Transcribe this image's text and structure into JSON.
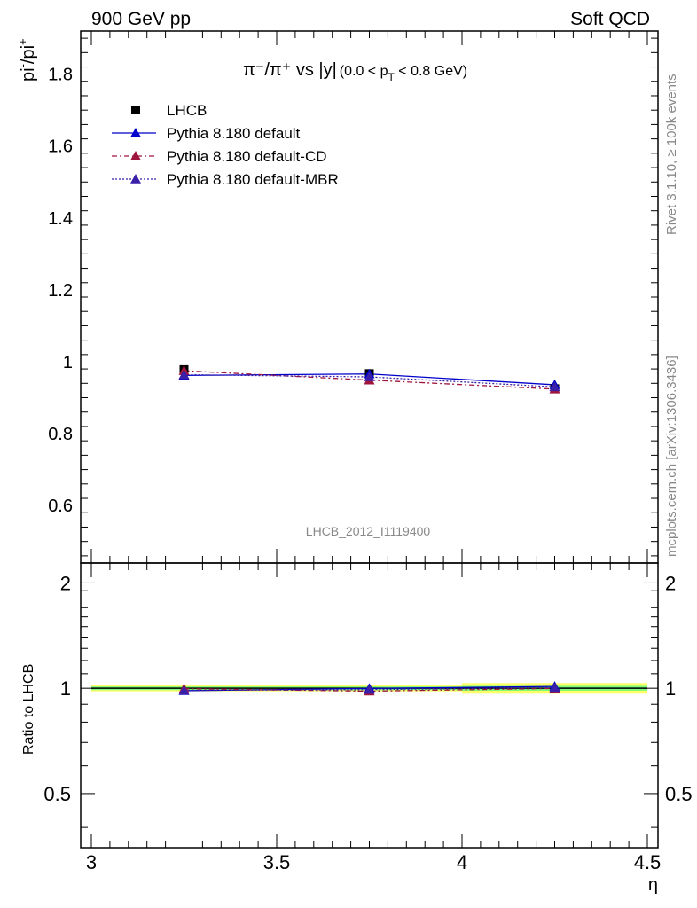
{
  "header": {
    "left": "900 GeV pp",
    "right": "Soft QCD"
  },
  "side_text": {
    "rivet": "Rivet 3.1.10, ≥ 100k events",
    "url": "mcplots.cern.ch [arXiv:1306.3436]"
  },
  "analysis_label": "LHCB_2012_I1119400",
  "colors": {
    "data": "#000000",
    "default": "#0000cc",
    "cd": "#a0153e",
    "mbr": "#3a1fa8",
    "band_inner": "#7cfc7c",
    "band_outer": "#ffff66"
  },
  "chart_data": [
    {
      "type": "line",
      "title_parts": {
        "main": "π⁻/π⁺ vs |y|",
        "sub": "(0.0 < p",
        "sub_sub": "T",
        "sub_end": " < 0.8 GeV)"
      },
      "ylabel": "pi⁻/pi⁺",
      "xlim": [
        3.0,
        4.5
      ],
      "ylim": [
        0.44,
        1.92
      ],
      "y_ticks": [
        0.6,
        0.8,
        1,
        1.2,
        1.4,
        1.6,
        1.8
      ],
      "y_tick_labels": [
        "0.6",
        "0.8",
        "1",
        "1.2",
        "1.4",
        "1.6",
        "1.8"
      ],
      "x": [
        3.25,
        3.75,
        4.25
      ],
      "x_bin_edges": [
        3.0,
        3.5,
        4.0,
        4.5
      ],
      "series": [
        {
          "name": "LHCB",
          "key": "data",
          "values": [
            0.978,
            0.967,
            0.925
          ],
          "style": "square-marker"
        },
        {
          "name": "Pythia 8.180 default",
          "key": "default",
          "values": [
            0.962,
            0.966,
            0.936
          ],
          "style": "solid"
        },
        {
          "name": "Pythia 8.180 default-CD",
          "key": "cd",
          "values": [
            0.975,
            0.949,
            0.924
          ],
          "style": "dashdot"
        },
        {
          "name": "Pythia 8.180 default-MBR",
          "key": "mbr",
          "values": [
            0.964,
            0.958,
            0.93
          ],
          "style": "dotted"
        }
      ],
      "legend_position": "top-left"
    },
    {
      "type": "line",
      "ylabel": "Ratio to LHCB",
      "xlabel": "η",
      "xlim": [
        3.0,
        4.5
      ],
      "ylim": [
        0.35,
        2.28
      ],
      "y_ticks": [
        0.5,
        1,
        2
      ],
      "y_tick_labels": [
        "0.5",
        "1",
        "2"
      ],
      "x_ticks": [
        3,
        3.5,
        4,
        4.5
      ],
      "x_tick_labels": [
        "3",
        "3.5",
        "4",
        "4.5"
      ],
      "x": [
        3.25,
        3.75,
        4.25
      ],
      "band_inner_halfwidth": [
        0.012,
        0.012,
        0.016
      ],
      "band_outer_halfwidth": [
        0.02,
        0.02,
        0.035
      ],
      "series": [
        {
          "name": "Pythia 8.180 default",
          "key": "default",
          "values": [
            0.984,
            0.999,
            1.012
          ]
        },
        {
          "name": "Pythia 8.180 default-CD",
          "key": "cd",
          "values": [
            0.997,
            0.981,
            0.999
          ]
        },
        {
          "name": "Pythia 8.180 default-MBR",
          "key": "mbr",
          "values": [
            0.986,
            0.991,
            1.005
          ]
        }
      ]
    }
  ]
}
